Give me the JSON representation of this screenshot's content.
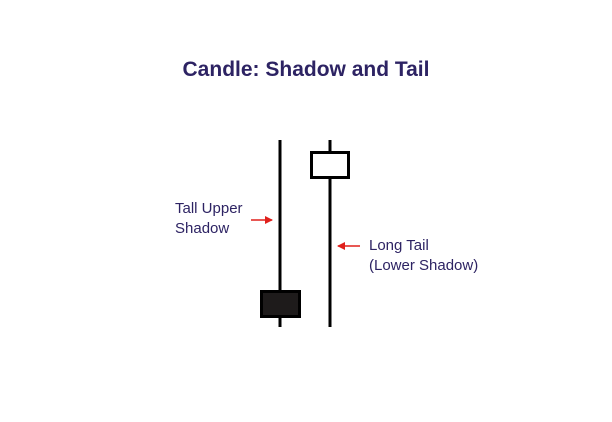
{
  "title": "Candle: Shadow and Tail",
  "labels": {
    "upper_shadow": {
      "line1": "Tall Upper",
      "line2": "Shadow"
    },
    "lower_shadow": {
      "line1": "Long Tail",
      "line2": "(Lower Shadow)"
    }
  },
  "colors": {
    "title": "#2d2363",
    "label_text": "#2d2363",
    "arrow": "#e0201c",
    "candle_outline": "#000000",
    "dark_candle_body": "#1e1b1b",
    "light_candle_body": "#ffffff"
  },
  "icons": {
    "arrow": "left-arrow-icon"
  }
}
